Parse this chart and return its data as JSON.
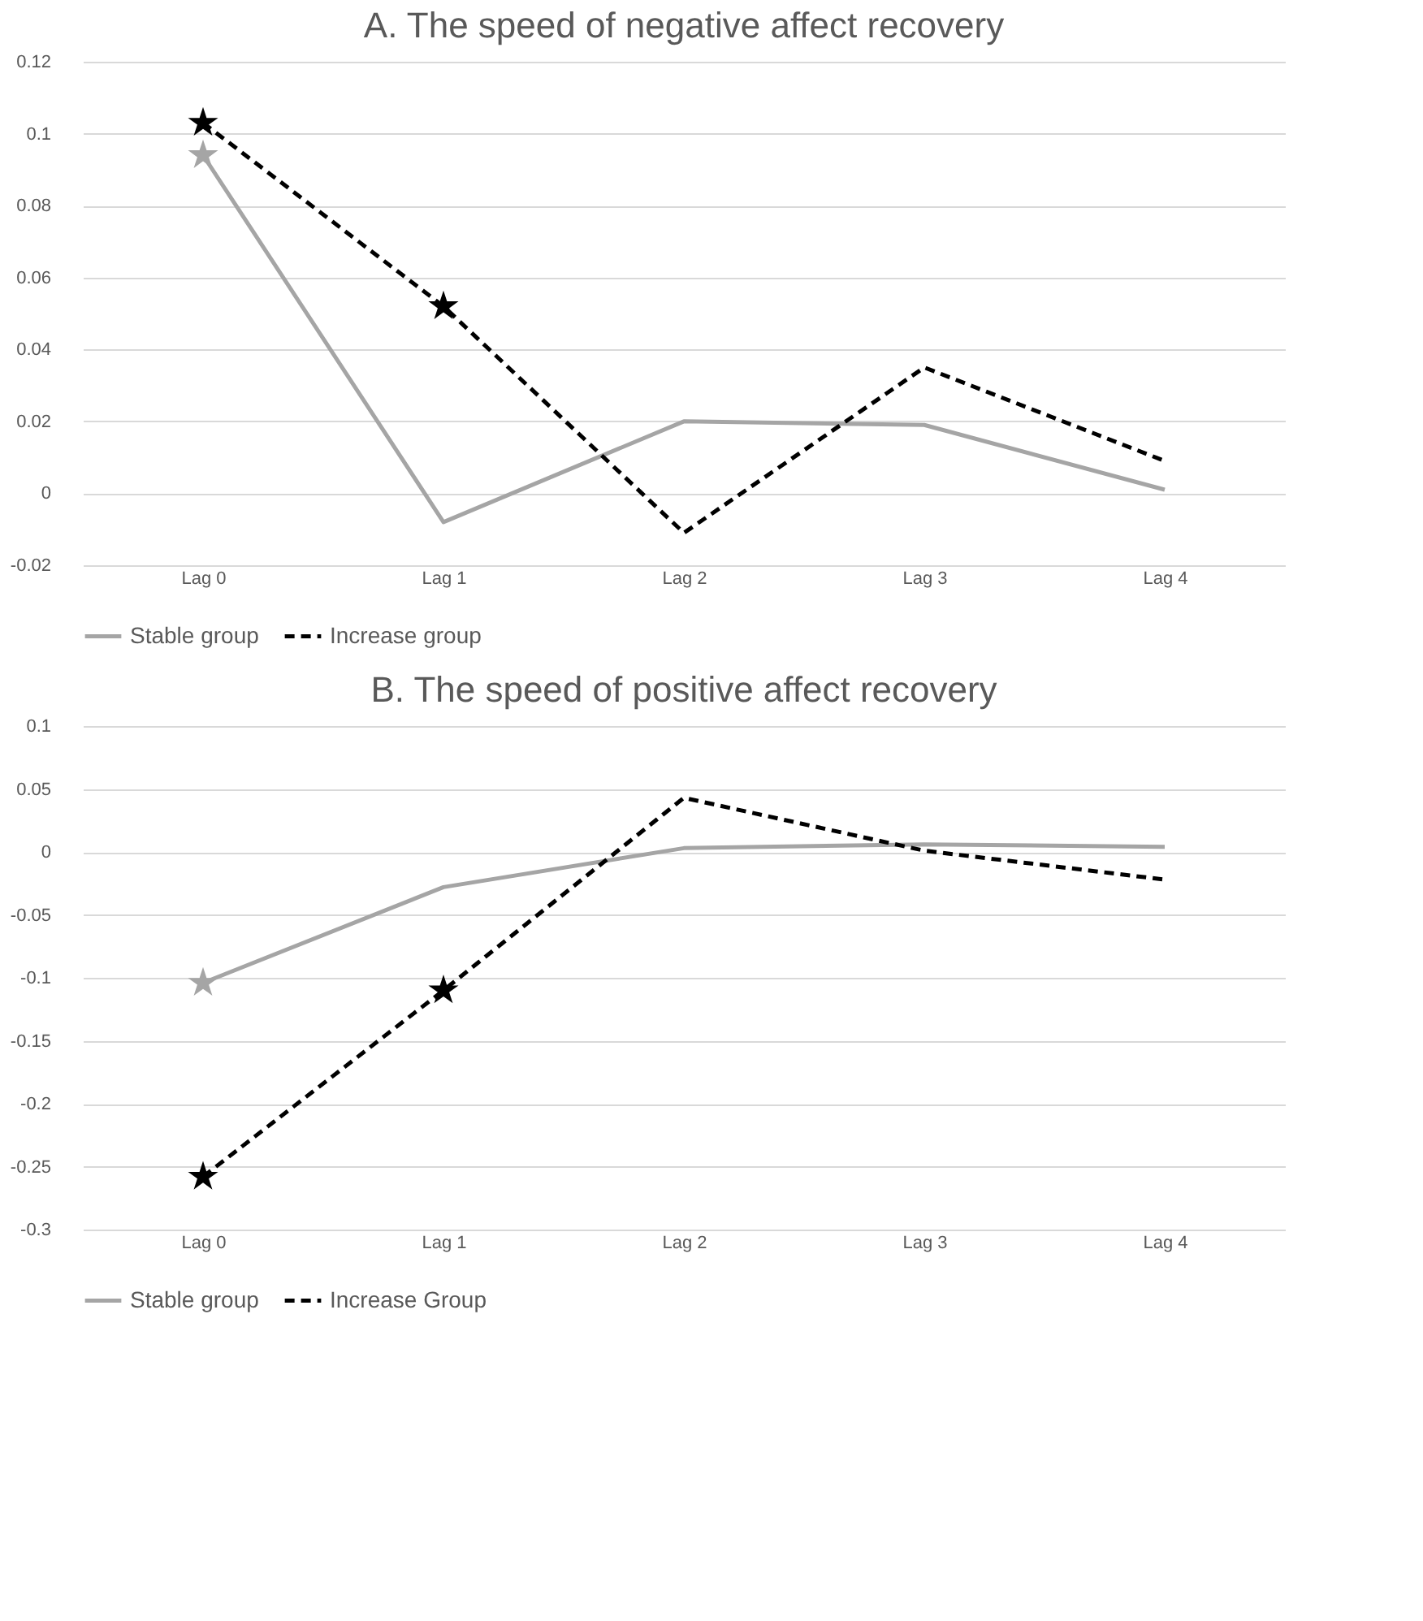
{
  "chart_data": [
    {
      "type": "line",
      "title": "A. The speed of negative affect recovery",
      "categories": [
        "Lag 0",
        "Lag 1",
        "Lag 2",
        "Lag 3",
        "Lag 4"
      ],
      "ylim": [
        -0.02,
        0.12
      ],
      "yticks": [
        -0.02,
        0,
        0.02,
        0.04,
        0.06,
        0.08,
        0.1,
        0.12
      ],
      "grid": "y",
      "legend": "bottom",
      "marker": "none",
      "series": [
        {
          "name": "Stable group",
          "color": "#a5a5a5",
          "line_style": "solid",
          "values": [
            0.094,
            -0.008,
            0.02,
            0.019,
            0.001
          ]
        },
        {
          "name": "Increase group",
          "color": "#000000",
          "line_style": "dashed",
          "values": [
            0.103,
            0.052,
            -0.011,
            0.035,
            0.009
          ]
        },
        {
          "type": "scatter",
          "marker": "star",
          "color": "#a5a5a5",
          "values": [
            0.094,
            null,
            null,
            null,
            null
          ]
        },
        {
          "type": "scatter",
          "marker": "star",
          "color": "#000000",
          "values": [
            0.103,
            0.052,
            null,
            null,
            null
          ]
        }
      ]
    },
    {
      "type": "line",
      "title": "B. The speed of positive affect recovery",
      "categories": [
        "Lag 0",
        "Lag 1",
        "Lag 2",
        "Lag 3",
        "Lag 4"
      ],
      "ylim": [
        -0.3,
        0.1
      ],
      "yticks": [
        -0.3,
        -0.25,
        -0.2,
        -0.15,
        -0.1,
        -0.05,
        0,
        0.05,
        0.1
      ],
      "grid": "y",
      "legend": "bottom",
      "marker": "none",
      "series": [
        {
          "name": "Stable group",
          "color": "#a5a5a5",
          "line_style": "solid",
          "values": [
            -0.104,
            -0.028,
            0.003,
            0.006,
            0.004
          ]
        },
        {
          "name": "Increase Group",
          "color": "#000000",
          "line_style": "dashed",
          "values": [
            -0.258,
            -0.11,
            0.043,
            0.001,
            -0.022
          ]
        },
        {
          "type": "scatter",
          "marker": "star",
          "color": "#a5a5a5",
          "values": [
            -0.104,
            null,
            null,
            null,
            null
          ]
        },
        {
          "type": "scatter",
          "marker": "star",
          "color": "#000000",
          "values": [
            -0.258,
            -0.11,
            null,
            null,
            null
          ]
        }
      ]
    }
  ]
}
